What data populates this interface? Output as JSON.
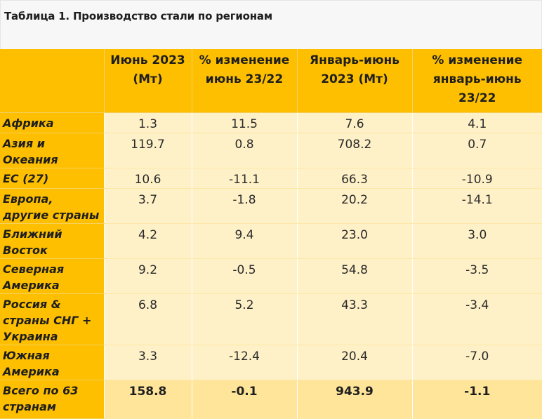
{
  "document": {
    "title": "Таблица 1. Производство стали по регионам"
  },
  "table": {
    "headers": [
      "",
      "Июнь 2023 (Мт)",
      "% изменение июнь 23/22",
      "Январь-июнь 2023 (Мт)",
      "% изменение январь-июнь 23/22"
    ],
    "rows": [
      {
        "region": "Африка",
        "june": "1.3",
        "june_change": "11.5",
        "ytd": "7.6",
        "ytd_change": "4.1"
      },
      {
        "region": "Азия и Океания",
        "june": "119.7",
        "june_change": "0.8",
        "ytd": "708.2",
        "ytd_change": "0.7"
      },
      {
        "region": "ЕС (27)",
        "june": "10.6",
        "june_change": "-11.1",
        "ytd": "66.3",
        "ytd_change": "-10.9"
      },
      {
        "region": "Европа, другие страны",
        "june": "3.7",
        "june_change": "-1.8",
        "ytd": "20.2",
        "ytd_change": "-14.1"
      },
      {
        "region": "Ближний Восток",
        "june": "4.2",
        "june_change": "9.4",
        "ytd": "23.0",
        "ytd_change": "3.0"
      },
      {
        "region": "Северная Америка",
        "june": "9.2",
        "june_change": "-0.5",
        "ytd": "54.8",
        "ytd_change": "-3.5"
      },
      {
        "region": "Россия & страны СНГ + Украина",
        "june": "6.8",
        "june_change": "5.2",
        "ytd": "43.3",
        "ytd_change": "-3.4"
      },
      {
        "region": "Южная Америка",
        "june": "3.3",
        "june_change": "-12.4",
        "ytd": "20.4",
        "ytd_change": "-7.0"
      }
    ],
    "total": {
      "region": "Всего по 63 странам",
      "june": "158.8",
      "june_change": "-0.1",
      "ytd": "943.9",
      "ytd_change": "-1.1"
    }
  },
  "colors": {
    "header_bg": "#fdbf00",
    "cell_bg": "#fff1c7",
    "total_bg": "#ffe59a",
    "title_bg": "#f7f7f7"
  }
}
